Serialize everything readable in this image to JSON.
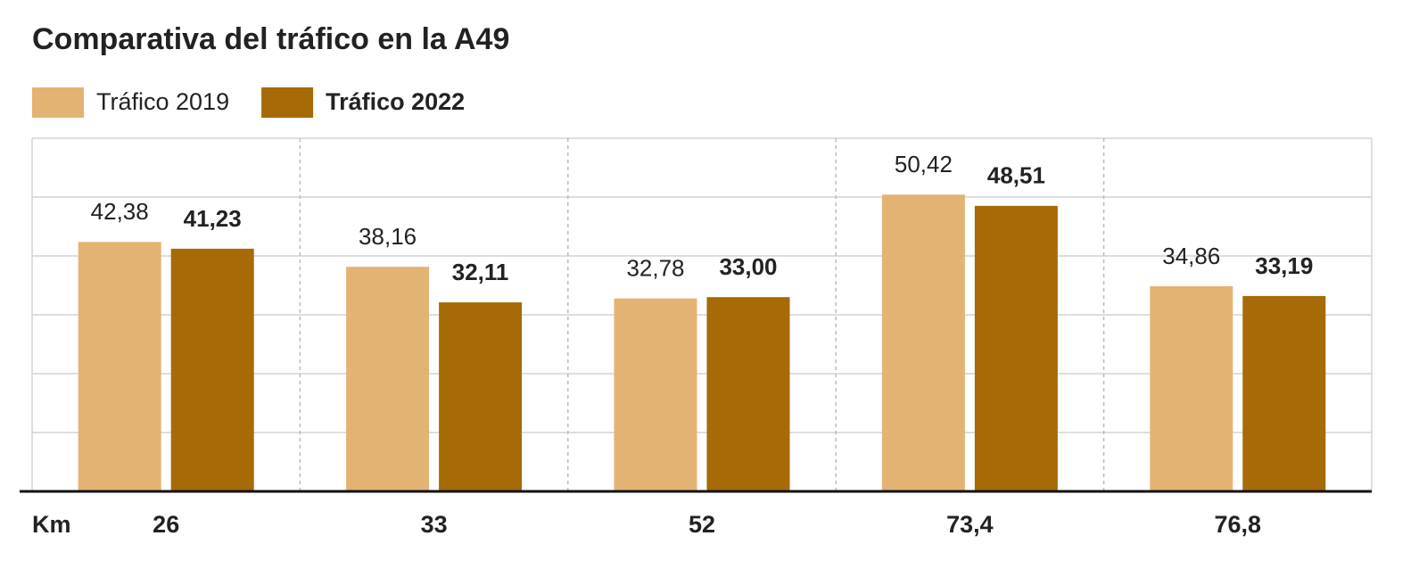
{
  "chart_data": {
    "type": "bar",
    "title": "Comparativa del tráfico en la A49",
    "x_label": "Km",
    "categories": [
      "26",
      "33",
      "52",
      "73,4",
      "76,8"
    ],
    "series": [
      {
        "name": "Tráfico 2019",
        "color": "#e3b374",
        "values": [
          42.38,
          38.16,
          32.78,
          50.42,
          34.86
        ],
        "value_labels": [
          "42,38",
          "38,16",
          "32,78",
          "50,42",
          "34,86"
        ]
      },
      {
        "name": "Tráfico 2022",
        "color": "#a66a06",
        "values": [
          41.23,
          32.11,
          33.0,
          48.51,
          33.19
        ],
        "value_labels": [
          "41,23",
          "32,11",
          "33,00",
          "48,51",
          "33,19"
        ]
      }
    ],
    "ylim": [
      0,
      60
    ],
    "yticks": [
      0,
      10,
      20,
      30,
      40,
      50,
      60
    ],
    "grid": true
  }
}
